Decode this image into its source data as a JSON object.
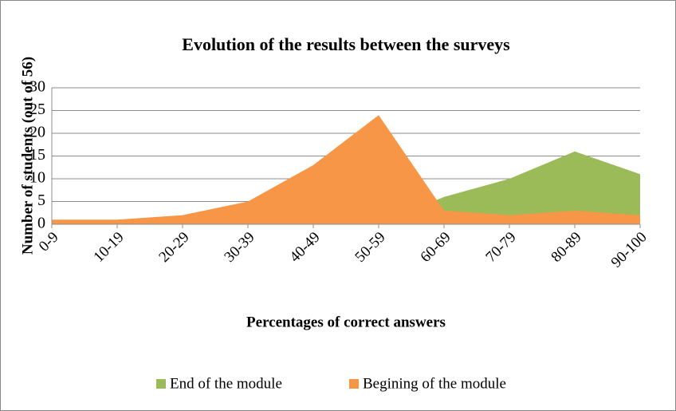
{
  "chart_data": {
    "type": "area",
    "title": "Evolution of the results between the surveys",
    "xlabel": "Percentages of correct answers",
    "ylabel": "Number of students (out of 56)",
    "categories": [
      "0-9",
      "10-19",
      "20-29",
      "30-39",
      "40-49",
      "50-59",
      "60-69",
      "70-79",
      "80-89",
      "90-100"
    ],
    "series": [
      {
        "name": "End of the module",
        "color": "#9bbb59",
        "values": [
          0,
          0,
          0,
          0,
          0,
          0,
          6,
          10,
          16,
          11
        ]
      },
      {
        "name": "Begining of the module",
        "color": "#f79646",
        "values": [
          1,
          1,
          2,
          5,
          13,
          24,
          3,
          2,
          3,
          2
        ]
      }
    ],
    "ylim": [
      0,
      30
    ],
    "yticks": [
      0,
      5,
      10,
      15,
      20,
      25,
      30
    ],
    "grid": true,
    "legend": "bottom"
  }
}
